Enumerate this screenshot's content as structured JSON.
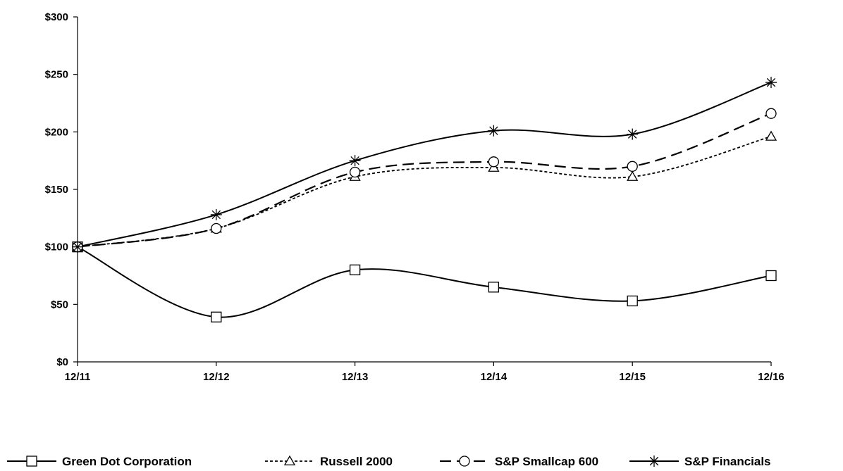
{
  "chart_data": {
    "type": "line",
    "title": "",
    "xlabel": "",
    "ylabel": "",
    "categories": [
      "12/11",
      "12/12",
      "12/13",
      "12/14",
      "12/15",
      "12/16"
    ],
    "yticks": [
      "$0",
      "$50",
      "$100",
      "$150",
      "$200",
      "$250",
      "$300"
    ],
    "ylim": [
      0,
      300
    ],
    "grid": false,
    "legend_position": "bottom",
    "series": [
      {
        "name": "Green Dot Corporation",
        "values": [
          100,
          39,
          80,
          65,
          53,
          75
        ],
        "line": "solid",
        "marker": "square"
      },
      {
        "name": "Russell 2000",
        "values": [
          100,
          116,
          161,
          169,
          161,
          196
        ],
        "line": "dotted",
        "marker": "triangle"
      },
      {
        "name": "S&P Smallcap 600",
        "values": [
          100,
          116,
          165,
          174,
          170,
          216
        ],
        "line": "dashed",
        "marker": "circle"
      },
      {
        "name": "S&P Financials",
        "values": [
          100,
          128,
          175,
          201,
          198,
          243
        ],
        "line": "solid",
        "marker": "star"
      }
    ]
  }
}
